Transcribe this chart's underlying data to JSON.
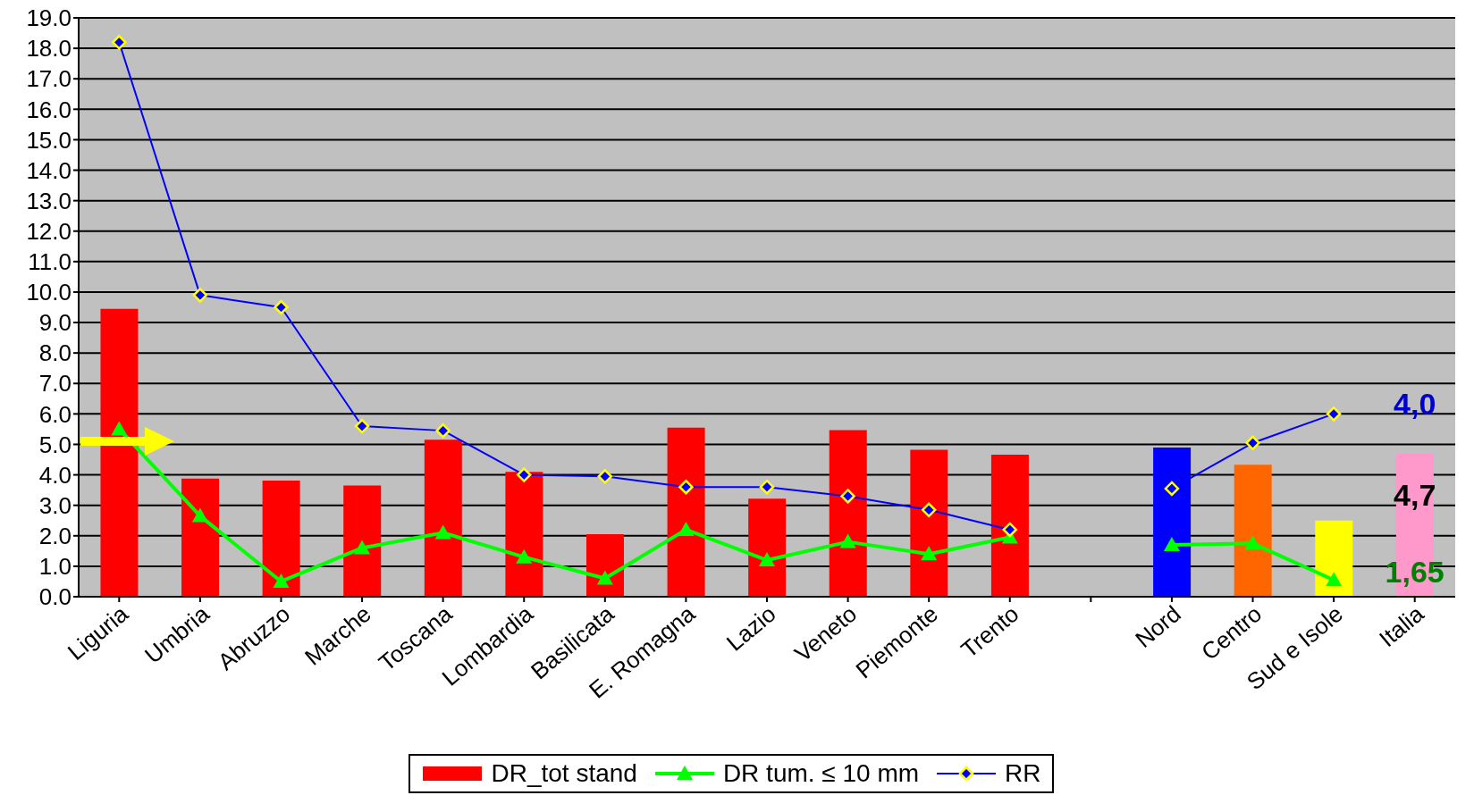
{
  "chart_data": {
    "type": "bar",
    "categories": [
      "Liguria",
      "Umbria",
      "Abruzzo",
      "Marche",
      "Toscana",
      "Lombardia",
      "Basilicata",
      "E. Romagna",
      "Lazio",
      "Veneto",
      "Piemonte",
      "Trento",
      null,
      "Nord",
      "Centro",
      "Sud e Isole",
      "Italia"
    ],
    "series": [
      {
        "name": "DR_tot stand",
        "color": "#ff0000",
        "colors": [
          "#ff0000",
          "#ff0000",
          "#ff0000",
          "#ff0000",
          "#ff0000",
          "#ff0000",
          "#ff0000",
          "#ff0000",
          "#ff0000",
          "#ff0000",
          "#ff0000",
          "#ff0000",
          "#ff0000",
          "#0000ff",
          "#ff6600",
          "#ffff00",
          "#ff99cc"
        ],
        "values": [
          9.45,
          3.88,
          3.81,
          3.65,
          5.15,
          4.1,
          2.05,
          5.55,
          3.22,
          5.47,
          4.82,
          4.66,
          null,
          4.9,
          4.33,
          2.5,
          4.7
        ]
      },
      {
        "name": "DR tum. ≤ 10 mm",
        "type": "line",
        "color": "#00ff00",
        "marker": "triangle",
        "values": [
          5.5,
          2.65,
          0.5,
          1.6,
          2.1,
          1.3,
          0.6,
          2.2,
          1.2,
          1.8,
          1.4,
          1.95,
          null,
          1.7,
          1.75,
          0.55,
          null
        ]
      },
      {
        "name": "RR",
        "type": "line",
        "color": "#0000ff",
        "marker": "diamond",
        "values": [
          18.2,
          9.9,
          9.5,
          5.6,
          5.45,
          4.0,
          3.95,
          3.6,
          3.6,
          3.3,
          2.85,
          2.2,
          null,
          3.55,
          5.05,
          6.0,
          null
        ]
      }
    ],
    "ylim": [
      0,
      19
    ],
    "yticks": [
      {
        "value": 0,
        "label": "0.0"
      },
      {
        "value": 1,
        "label": "1.0"
      },
      {
        "value": 2,
        "label": "2.0"
      },
      {
        "value": 3,
        "label": "3.0"
      },
      {
        "value": 4,
        "label": "4.0"
      },
      {
        "value": 5,
        "label": "5.0"
      },
      {
        "value": 6,
        "label": "6.0"
      },
      {
        "value": 7,
        "label": "7.0"
      },
      {
        "value": 8,
        "label": "8.0"
      },
      {
        "value": 9,
        "label": "9.0"
      },
      {
        "value": 10,
        "label": "10.0"
      },
      {
        "value": 11,
        "label": "11.0"
      },
      {
        "value": 12,
        "label": "12.0"
      },
      {
        "value": 13,
        "label": "13.0"
      },
      {
        "value": 14,
        "label": "14.0"
      },
      {
        "value": 15,
        "label": "15.0"
      },
      {
        "value": 16,
        "label": "16.0"
      },
      {
        "value": 17,
        "label": "17.0"
      },
      {
        "value": 18,
        "label": "18.0"
      },
      {
        "value": 19,
        "label": "19.0"
      }
    ],
    "grid": "y",
    "legend": "bottom",
    "annotations": [
      "4,0",
      "4,7",
      "1,65"
    ]
  }
}
